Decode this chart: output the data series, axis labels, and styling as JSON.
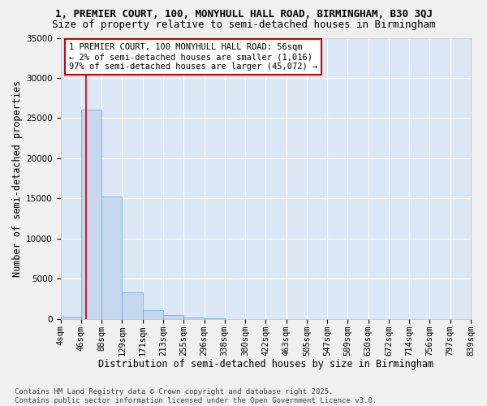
{
  "title": "1, PREMIER COURT, 100, MONYHULL HALL ROAD, BIRMINGHAM, B30 3QJ",
  "subtitle": "Size of property relative to semi-detached houses in Birmingham",
  "xlabel": "Distribution of semi-detached houses by size in Birmingham",
  "ylabel": "Number of semi-detached properties",
  "bin_labels": [
    "4sqm",
    "46sqm",
    "88sqm",
    "129sqm",
    "171sqm",
    "213sqm",
    "255sqm",
    "296sqm",
    "338sqm",
    "380sqm",
    "422sqm",
    "463sqm",
    "505sqm",
    "547sqm",
    "589sqm",
    "630sqm",
    "672sqm",
    "714sqm",
    "756sqm",
    "797sqm",
    "839sqm"
  ],
  "bar_values": [
    300,
    26100,
    15200,
    3300,
    1100,
    500,
    200,
    50,
    10,
    5,
    2,
    1,
    0,
    0,
    0,
    0,
    0,
    0,
    0,
    0
  ],
  "bar_color": "#c5d8f0",
  "bar_edge_color": "#7aafd4",
  "ylim": [
    0,
    35000
  ],
  "yticks": [
    0,
    5000,
    10000,
    15000,
    20000,
    25000,
    30000,
    35000
  ],
  "bin_edges": [
    4,
    46,
    88,
    129,
    171,
    213,
    255,
    296,
    338,
    380,
    422,
    463,
    505,
    547,
    589,
    630,
    672,
    714,
    756,
    797,
    839
  ],
  "property_sqm": 56,
  "annotation_text": "1 PREMIER COURT, 100 MONYHULL HALL ROAD: 56sqm\n← 2% of semi-detached houses are smaller (1,016)\n97% of semi-detached houses are larger (45,072) →",
  "annotation_border_color": "#cc0000",
  "marker_line_color": "#cc0000",
  "bg_color": "#dce8f5",
  "plot_bg_color": "#dce8f5",
  "fig_bg_color": "#f0f0f0",
  "grid_color": "#ffffff",
  "footer_text": "Contains HM Land Registry data © Crown copyright and database right 2025.\nContains public sector information licensed under the Open Government Licence v3.0.",
  "title_fontsize": 9,
  "subtitle_fontsize": 9,
  "axis_label_fontsize": 8.5,
  "tick_fontsize": 7.5,
  "annotation_fontsize": 7.5,
  "footer_fontsize": 6.5
}
